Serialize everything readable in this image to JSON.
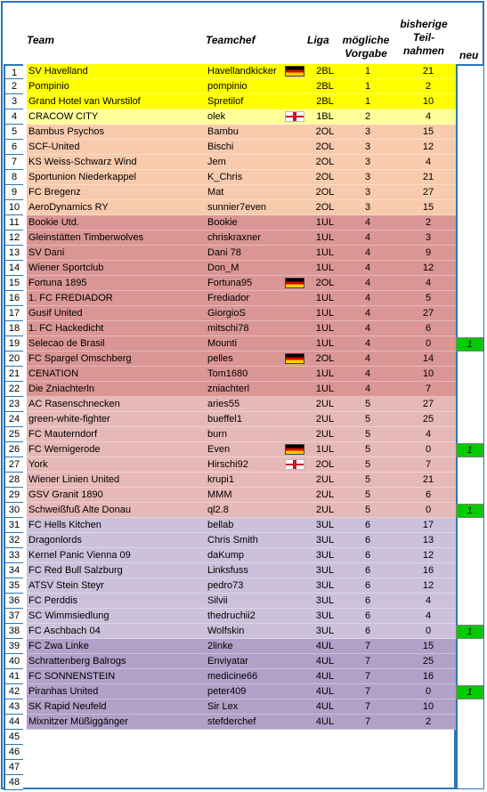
{
  "headers": {
    "team": "Team",
    "teamchef": "Teamchef",
    "liga": "Liga",
    "vorgabe_l1": "mögliche",
    "vorgabe_l2": "Vorgabe",
    "teil_l1": "bisherige",
    "teil_l2": "Teil-",
    "teil_l3": "nahmen",
    "neu": "neu"
  },
  "colors": {
    "1BL": "#ffff00",
    "1BL_alt": "#ffff99",
    "2OL": "#f8cbad",
    "1UL": "#da9694",
    "2UL": "#e6b8b7",
    "3UL": "#ccc0da",
    "4UL": "#b1a0c7",
    "new_marker": "#00cc00",
    "border": "#2e75b6"
  },
  "rows": [
    {
      "nr": "1",
      "team": "SV Havelland",
      "chef": "Havellandkicker",
      "flag": "de",
      "liga": "2BL",
      "vorgabe": "1",
      "teil": "21",
      "neu": "",
      "band": "1BL"
    },
    {
      "nr": "2",
      "team": "Pompinio",
      "chef": "pompinio",
      "flag": "",
      "liga": "2BL",
      "vorgabe": "1",
      "teil": "2",
      "neu": "",
      "band": "1BL"
    },
    {
      "nr": "3",
      "team": "Grand Hotel van Wurstilof",
      "chef": "Spretilof",
      "flag": "",
      "liga": "2BL",
      "vorgabe": "1",
      "teil": "10",
      "neu": "",
      "band": "1BL"
    },
    {
      "nr": "4",
      "team": "CRACOW CITY",
      "chef": "olek",
      "flag": "en",
      "liga": "1BL",
      "vorgabe": "2",
      "teil": "4",
      "neu": "",
      "band": "1BL_alt"
    },
    {
      "nr": "5",
      "team": "Bambus Psychos",
      "chef": "Bambu",
      "flag": "",
      "liga": "2OL",
      "vorgabe": "3",
      "teil": "15",
      "neu": "",
      "band": "2OL"
    },
    {
      "nr": "6",
      "team": "SCF-United",
      "chef": "Bischi",
      "flag": "",
      "liga": "2OL",
      "vorgabe": "3",
      "teil": "12",
      "neu": "",
      "band": "2OL"
    },
    {
      "nr": "7",
      "team": "KS Weiss-Schwarz Wind",
      "chef": "Jem",
      "flag": "",
      "liga": "2OL",
      "vorgabe": "3",
      "teil": "4",
      "neu": "",
      "band": "2OL"
    },
    {
      "nr": "8",
      "team": "Sportunion Niederkappel",
      "chef": "K_Chris",
      "flag": "",
      "liga": "2OL",
      "vorgabe": "3",
      "teil": "21",
      "neu": "",
      "band": "2OL"
    },
    {
      "nr": "9",
      "team": "FC Bregenz",
      "chef": "Mat",
      "flag": "",
      "liga": "2OL",
      "vorgabe": "3",
      "teil": "27",
      "neu": "",
      "band": "2OL"
    },
    {
      "nr": "10",
      "team": "AeroDynamics RY",
      "chef": "sunnier7even",
      "flag": "",
      "liga": "2OL",
      "vorgabe": "3",
      "teil": "15",
      "neu": "",
      "band": "2OL"
    },
    {
      "nr": "11",
      "team": "Bookie Utd.",
      "chef": "Bookie",
      "flag": "",
      "liga": "1UL",
      "vorgabe": "4",
      "teil": "2",
      "neu": "",
      "band": "1UL"
    },
    {
      "nr": "12",
      "team": "Gleinstätten Timberwolves",
      "chef": "chriskraxner",
      "flag": "",
      "liga": "1UL",
      "vorgabe": "4",
      "teil": "3",
      "neu": "",
      "band": "1UL"
    },
    {
      "nr": "13",
      "team": "SV Dani",
      "chef": "Dani 78",
      "flag": "",
      "liga": "1UL",
      "vorgabe": "4",
      "teil": "9",
      "neu": "",
      "band": "1UL"
    },
    {
      "nr": "14",
      "team": "Wiener Sportclub",
      "chef": "Don_M",
      "flag": "",
      "liga": "1UL",
      "vorgabe": "4",
      "teil": "12",
      "neu": "",
      "band": "1UL"
    },
    {
      "nr": "15",
      "team": "Fortuna 1895",
      "chef": "Fortuna95",
      "flag": "de",
      "liga": "2OL",
      "vorgabe": "4",
      "teil": "4",
      "neu": "",
      "band": "1UL"
    },
    {
      "nr": "16",
      "team": "1. FC FREDIADOR",
      "chef": "Frediador",
      "flag": "",
      "liga": "1UL",
      "vorgabe": "4",
      "teil": "5",
      "neu": "",
      "band": "1UL"
    },
    {
      "nr": "17",
      "team": "Gusif United",
      "chef": "GiorgioS",
      "flag": "",
      "liga": "1UL",
      "vorgabe": "4",
      "teil": "27",
      "neu": "",
      "band": "1UL"
    },
    {
      "nr": "18",
      "team": "1. FC Hackedicht",
      "chef": "mitschi78",
      "flag": "",
      "liga": "1UL",
      "vorgabe": "4",
      "teil": "6",
      "neu": "",
      "band": "1UL"
    },
    {
      "nr": "19",
      "team": "Selecao de Brasil",
      "chef": "Mounti",
      "flag": "",
      "liga": "1UL",
      "vorgabe": "4",
      "teil": "0",
      "neu": "1",
      "band": "1UL"
    },
    {
      "nr": "20",
      "team": "FC Spargel Omschberg",
      "chef": "pelles",
      "flag": "de",
      "liga": "2OL",
      "vorgabe": "4",
      "teil": "14",
      "neu": "",
      "band": "1UL"
    },
    {
      "nr": "21",
      "team": "CENATION",
      "chef": "Tom1680",
      "flag": "",
      "liga": "1UL",
      "vorgabe": "4",
      "teil": "10",
      "neu": "",
      "band": "1UL"
    },
    {
      "nr": "22",
      "team": "Die Zniachterln",
      "chef": "zniachterl",
      "flag": "",
      "liga": "1UL",
      "vorgabe": "4",
      "teil": "7",
      "neu": "",
      "band": "1UL"
    },
    {
      "nr": "23",
      "team": "AC Rasenschnecken",
      "chef": "aries55",
      "flag": "",
      "liga": "2UL",
      "vorgabe": "5",
      "teil": "27",
      "neu": "",
      "band": "2UL"
    },
    {
      "nr": "24",
      "team": "green-white-fighter",
      "chef": "bueffel1",
      "flag": "",
      "liga": "2UL",
      "vorgabe": "5",
      "teil": "25",
      "neu": "",
      "band": "2UL"
    },
    {
      "nr": "25",
      "team": "FC Mauterndorf",
      "chef": "burn",
      "flag": "",
      "liga": "2UL",
      "vorgabe": "5",
      "teil": "4",
      "neu": "",
      "band": "2UL"
    },
    {
      "nr": "26",
      "team": "FC Wernigerode",
      "chef": "Even",
      "flag": "de",
      "liga": "1UL",
      "vorgabe": "5",
      "teil": "0",
      "neu": "1",
      "band": "2UL"
    },
    {
      "nr": "27",
      "team": "York",
      "chef": "Hirschi92",
      "flag": "en",
      "liga": "2OL",
      "vorgabe": "5",
      "teil": "7",
      "neu": "",
      "band": "2UL"
    },
    {
      "nr": "28",
      "team": "Wiener Linien United",
      "chef": "krupi1",
      "flag": "",
      "liga": "2UL",
      "vorgabe": "5",
      "teil": "21",
      "neu": "",
      "band": "2UL"
    },
    {
      "nr": "29",
      "team": "GSV Granit 1890",
      "chef": "MMM",
      "flag": "",
      "liga": "2UL",
      "vorgabe": "5",
      "teil": "6",
      "neu": "",
      "band": "2UL"
    },
    {
      "nr": "30",
      "team": "Schweißfuß Alte Donau",
      "chef": "ql2.8",
      "flag": "",
      "liga": "2UL",
      "vorgabe": "5",
      "teil": "0",
      "neu": "1",
      "band": "2UL"
    },
    {
      "nr": "31",
      "team": "FC Hells Kitchen",
      "chef": "bellab",
      "flag": "",
      "liga": "3UL",
      "vorgabe": "6",
      "teil": "17",
      "neu": "",
      "band": "3UL"
    },
    {
      "nr": "32",
      "team": "Dragonlords",
      "chef": "Chris Smith",
      "flag": "",
      "liga": "3UL",
      "vorgabe": "6",
      "teil": "13",
      "neu": "",
      "band": "3UL"
    },
    {
      "nr": "33",
      "team": "Kernel Panic Vienna 09",
      "chef": "daKump",
      "flag": "",
      "liga": "3UL",
      "vorgabe": "6",
      "teil": "12",
      "neu": "",
      "band": "3UL"
    },
    {
      "nr": "34",
      "team": "FC Red Bull Salzburg",
      "chef": "Linksfuss",
      "flag": "",
      "liga": "3UL",
      "vorgabe": "6",
      "teil": "16",
      "neu": "",
      "band": "3UL"
    },
    {
      "nr": "35",
      "team": "ATSV Stein Steyr",
      "chef": "pedro73",
      "flag": "",
      "liga": "3UL",
      "vorgabe": "6",
      "teil": "12",
      "neu": "",
      "band": "3UL"
    },
    {
      "nr": "36",
      "team": "FC Perddis",
      "chef": "Silvii",
      "flag": "",
      "liga": "3UL",
      "vorgabe": "6",
      "teil": "4",
      "neu": "",
      "band": "3UL"
    },
    {
      "nr": "37",
      "team": "SC Wimmsiedlung",
      "chef": "thedruchii2",
      "flag": "",
      "liga": "3UL",
      "vorgabe": "6",
      "teil": "4",
      "neu": "",
      "band": "3UL"
    },
    {
      "nr": "38",
      "team": "FC Aschbach 04",
      "chef": "Wolfskin",
      "flag": "",
      "liga": "3UL",
      "vorgabe": "6",
      "teil": "0",
      "neu": "1",
      "band": "3UL"
    },
    {
      "nr": "39",
      "team": "FC Zwa Linke",
      "chef": "2linke",
      "flag": "",
      "liga": "4UL",
      "vorgabe": "7",
      "teil": "15",
      "neu": "",
      "band": "4UL"
    },
    {
      "nr": "40",
      "team": "Schrattenberg Balrogs",
      "chef": "Enviyatar",
      "flag": "",
      "liga": "4UL",
      "vorgabe": "7",
      "teil": "25",
      "neu": "",
      "band": "4UL"
    },
    {
      "nr": "41",
      "team": "FC SONNENSTEIN",
      "chef": "medicine66",
      "flag": "",
      "liga": "4UL",
      "vorgabe": "7",
      "teil": "16",
      "neu": "",
      "band": "4UL"
    },
    {
      "nr": "42",
      "team": "Piranhas United",
      "chef": "peter409",
      "flag": "",
      "liga": "4UL",
      "vorgabe": "7",
      "teil": "0",
      "neu": "1",
      "band": "4UL"
    },
    {
      "nr": "43",
      "team": "SK Rapid Neufeld",
      "chef": "Sir Lex",
      "flag": "",
      "liga": "4UL",
      "vorgabe": "7",
      "teil": "10",
      "neu": "",
      "band": "4UL"
    },
    {
      "nr": "44",
      "team": "Mixnitzer Müßiggänger",
      "chef": "stefderchef",
      "flag": "",
      "liga": "4UL",
      "vorgabe": "7",
      "teil": "2",
      "neu": "",
      "band": "4UL"
    },
    {
      "nr": "45",
      "team": "",
      "chef": "",
      "flag": "",
      "liga": "",
      "vorgabe": "",
      "teil": "",
      "neu": "",
      "band": ""
    },
    {
      "nr": "46",
      "team": "",
      "chef": "",
      "flag": "",
      "liga": "",
      "vorgabe": "",
      "teil": "",
      "neu": "",
      "band": ""
    },
    {
      "nr": "47",
      "team": "",
      "chef": "",
      "flag": "",
      "liga": "",
      "vorgabe": "",
      "teil": "",
      "neu": "",
      "band": ""
    },
    {
      "nr": "48",
      "team": "",
      "chef": "",
      "flag": "",
      "liga": "",
      "vorgabe": "",
      "teil": "",
      "neu": "",
      "band": ""
    }
  ]
}
